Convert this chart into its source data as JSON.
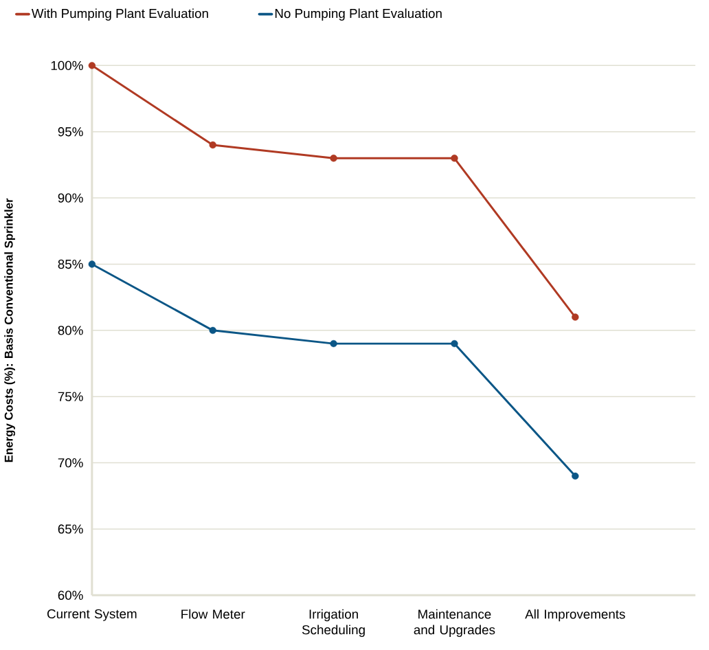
{
  "chart_data": {
    "type": "line",
    "ylabel": "Energy Costs (%): Basis Conventional Sprinkler",
    "categories": [
      "Current System",
      "Flow Meter",
      "Irrigation Scheduling",
      "Maintenance and Upgrades",
      "All Improvements"
    ],
    "series": [
      {
        "name": "With Pumping Plant Evaluation",
        "color": "#b03a23",
        "values": [
          100,
          94,
          93,
          93,
          81
        ]
      },
      {
        "name": "No Pumping Plant Evaluation",
        "color": "#0b5686",
        "values": [
          85,
          80,
          79,
          79,
          69
        ]
      }
    ],
    "ylim": [
      60,
      100
    ],
    "yticks": [
      {
        "value": 60,
        "label": "60%"
      },
      {
        "value": 65,
        "label": "65%"
      },
      {
        "value": 70,
        "label": "70%"
      },
      {
        "value": 75,
        "label": "75%"
      },
      {
        "value": 80,
        "label": "80%"
      },
      {
        "value": 85,
        "label": "85%"
      },
      {
        "value": 90,
        "label": "90%"
      },
      {
        "value": 95,
        "label": "95%"
      },
      {
        "value": 100,
        "label": "100%"
      }
    ],
    "grid": "y",
    "legend": "top left",
    "marker": "circle",
    "line_style": "solid"
  }
}
